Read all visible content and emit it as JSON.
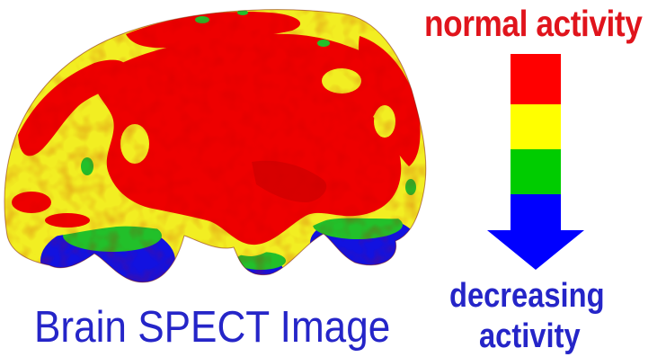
{
  "caption": "Brain SPECT Image",
  "legend": {
    "top_label": "normal activity",
    "bottom_label_line1": "decreasing",
    "bottom_label_line2": "activity",
    "levels": [
      {
        "color": "#ff0000"
      },
      {
        "color": "#ffff00"
      },
      {
        "color": "#00cc00"
      },
      {
        "color": "#0000ff"
      }
    ]
  },
  "colors": {
    "red": "#ee0000",
    "yellow": "#f2ee22",
    "green": "#22c02a",
    "blue": "#1212e0",
    "text_red": "#e0141c",
    "text_blue": "#2525c8"
  }
}
